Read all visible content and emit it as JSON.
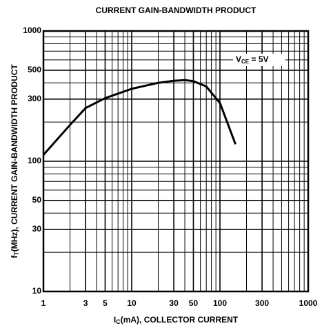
{
  "chart_data": {
    "type": "line",
    "title": "CURRENT GAIN-BANDWIDTH PRODUCT",
    "x_label": {
      "text": "I",
      "sub": "C",
      "rest": "(mA), COLLECTOR CURRENT"
    },
    "y_label": {
      "text": "f",
      "sub": "T",
      "rest": "(MHz), CURRENT GAIN-BANDWIDTH PRODUCT"
    },
    "annotation": {
      "text": "V",
      "sub": "CE",
      "rest": " = 5V"
    },
    "x_scale": "log",
    "y_scale": "log",
    "grid": true,
    "xlim": [
      1,
      1000
    ],
    "ylim": [
      10,
      1000
    ],
    "xticks": [
      1,
      3,
      5,
      10,
      30,
      50,
      100,
      300,
      1000
    ],
    "yticks": [
      10,
      30,
      50,
      100,
      300,
      500,
      1000
    ],
    "xgrid_minor": [
      2,
      4,
      6,
      7,
      8,
      9,
      20,
      40,
      60,
      70,
      80,
      90,
      200,
      400,
      500,
      600,
      700,
      800,
      900
    ],
    "ygrid_minor": [
      20,
      40,
      60,
      70,
      80,
      90,
      200,
      400,
      600,
      700,
      800,
      900
    ],
    "series": [
      {
        "color": "#000000",
        "x": [
          1,
          2,
          3,
          5,
          10,
          20,
          30,
          40,
          50,
          70,
          100,
          150
        ],
        "values": [
          112,
          190,
          256,
          305,
          360,
          400,
          415,
          420,
          412,
          375,
          280,
          135
        ]
      }
    ]
  }
}
